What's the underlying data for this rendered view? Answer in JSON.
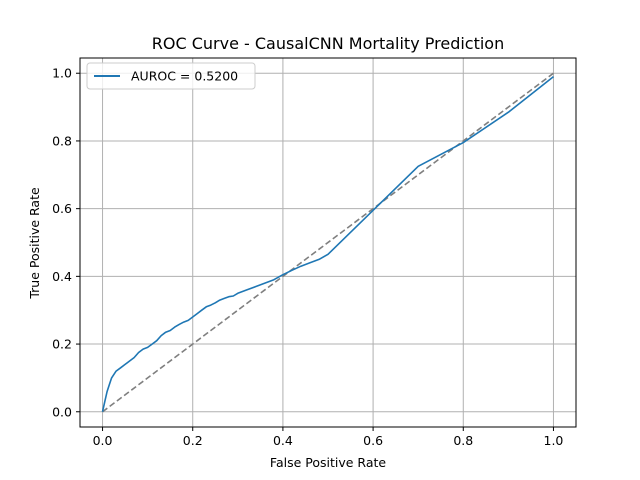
{
  "chart_data": {
    "type": "line",
    "title": "ROC Curve - CausalCNN Mortality Prediction",
    "xlabel": "False Positive Rate",
    "ylabel": "True Positive Rate",
    "xlim": [
      -0.05,
      1.05
    ],
    "ylim": [
      -0.045,
      1.045
    ],
    "xticks": [
      0.0,
      0.2,
      0.4,
      0.6,
      0.8,
      1.0
    ],
    "yticks": [
      0.0,
      0.2,
      0.4,
      0.6,
      0.8,
      1.0
    ],
    "tick_labels_x": [
      "0.0",
      "0.2",
      "0.4",
      "0.6",
      "0.8",
      "1.0"
    ],
    "tick_labels_y": [
      "0.0",
      "0.2",
      "0.4",
      "0.6",
      "0.8",
      "1.0"
    ],
    "grid": true,
    "legend_position": "upper-left",
    "series": [
      {
        "name": "AUROC = 0.5200",
        "color": "#1f77b4",
        "style": "solid",
        "x": [
          0.0,
          0.005,
          0.01,
          0.015,
          0.02,
          0.03,
          0.04,
          0.05,
          0.06,
          0.07,
          0.08,
          0.09,
          0.1,
          0.11,
          0.12,
          0.13,
          0.14,
          0.15,
          0.16,
          0.17,
          0.18,
          0.19,
          0.2,
          0.21,
          0.22,
          0.23,
          0.24,
          0.25,
          0.26,
          0.27,
          0.28,
          0.29,
          0.3,
          0.32,
          0.34,
          0.36,
          0.38,
          0.4,
          0.42,
          0.44,
          0.46,
          0.48,
          0.5,
          0.6,
          0.7,
          0.8,
          0.9,
          1.0
        ],
        "y": [
          0.0,
          0.03,
          0.06,
          0.08,
          0.1,
          0.12,
          0.13,
          0.14,
          0.15,
          0.16,
          0.175,
          0.185,
          0.19,
          0.2,
          0.21,
          0.225,
          0.235,
          0.24,
          0.25,
          0.258,
          0.265,
          0.27,
          0.28,
          0.29,
          0.3,
          0.31,
          0.315,
          0.322,
          0.33,
          0.335,
          0.34,
          0.342,
          0.35,
          0.36,
          0.37,
          0.38,
          0.39,
          0.405,
          0.418,
          0.43,
          0.44,
          0.45,
          0.465,
          0.595,
          0.725,
          0.795,
          0.885,
          0.99
        ]
      },
      {
        "name": "",
        "color": "#7f7f7f",
        "style": "dashed",
        "x": [
          0.0,
          1.0
        ],
        "y": [
          0.0,
          1.0
        ]
      }
    ]
  }
}
